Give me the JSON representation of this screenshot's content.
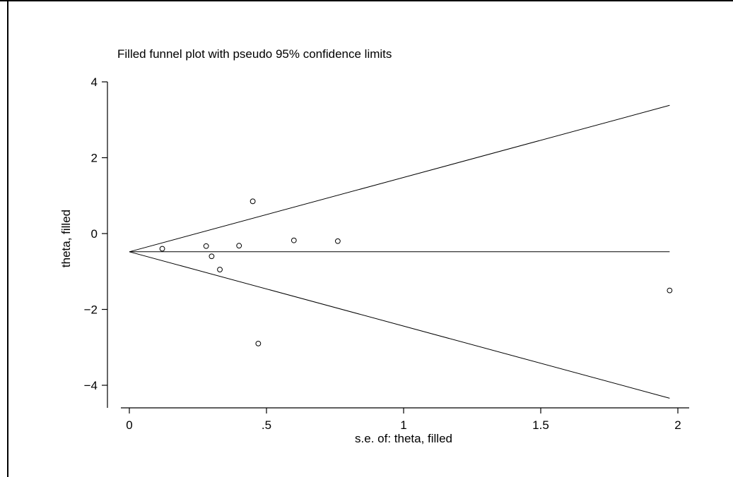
{
  "chart_data": {
    "type": "scatter",
    "title": "Filled funnel plot with pseudo 95% confidence limits",
    "xlabel": "s.e. of: theta, filled",
    "ylabel": "theta, filled",
    "xlim": [
      -0.03,
      2.03
    ],
    "ylim": [
      -4.65,
      4.35
    ],
    "xticks": [
      0,
      0.5,
      1,
      1.5,
      2
    ],
    "xtick_labels": [
      "0",
      ".5",
      "1",
      "1.5",
      "2"
    ],
    "yticks": [
      -4,
      -2,
      0,
      2,
      4
    ],
    "ytick_labels": [
      "−4",
      "−2",
      "0",
      "2",
      "4"
    ],
    "grid": false,
    "pooled_estimate": -0.48,
    "se_max": 1.97,
    "confidence_multiplier": 1.96,
    "points": [
      {
        "x": 0.12,
        "y": -0.4
      },
      {
        "x": 0.28,
        "y": -0.33
      },
      {
        "x": 0.3,
        "y": -0.6
      },
      {
        "x": 0.33,
        "y": -0.95
      },
      {
        "x": 0.4,
        "y": -0.32
      },
      {
        "x": 0.45,
        "y": 0.85
      },
      {
        "x": 0.47,
        "y": -2.9
      },
      {
        "x": 0.6,
        "y": -0.18
      },
      {
        "x": 0.76,
        "y": -0.2
      },
      {
        "x": 1.97,
        "y": -1.5
      }
    ]
  }
}
